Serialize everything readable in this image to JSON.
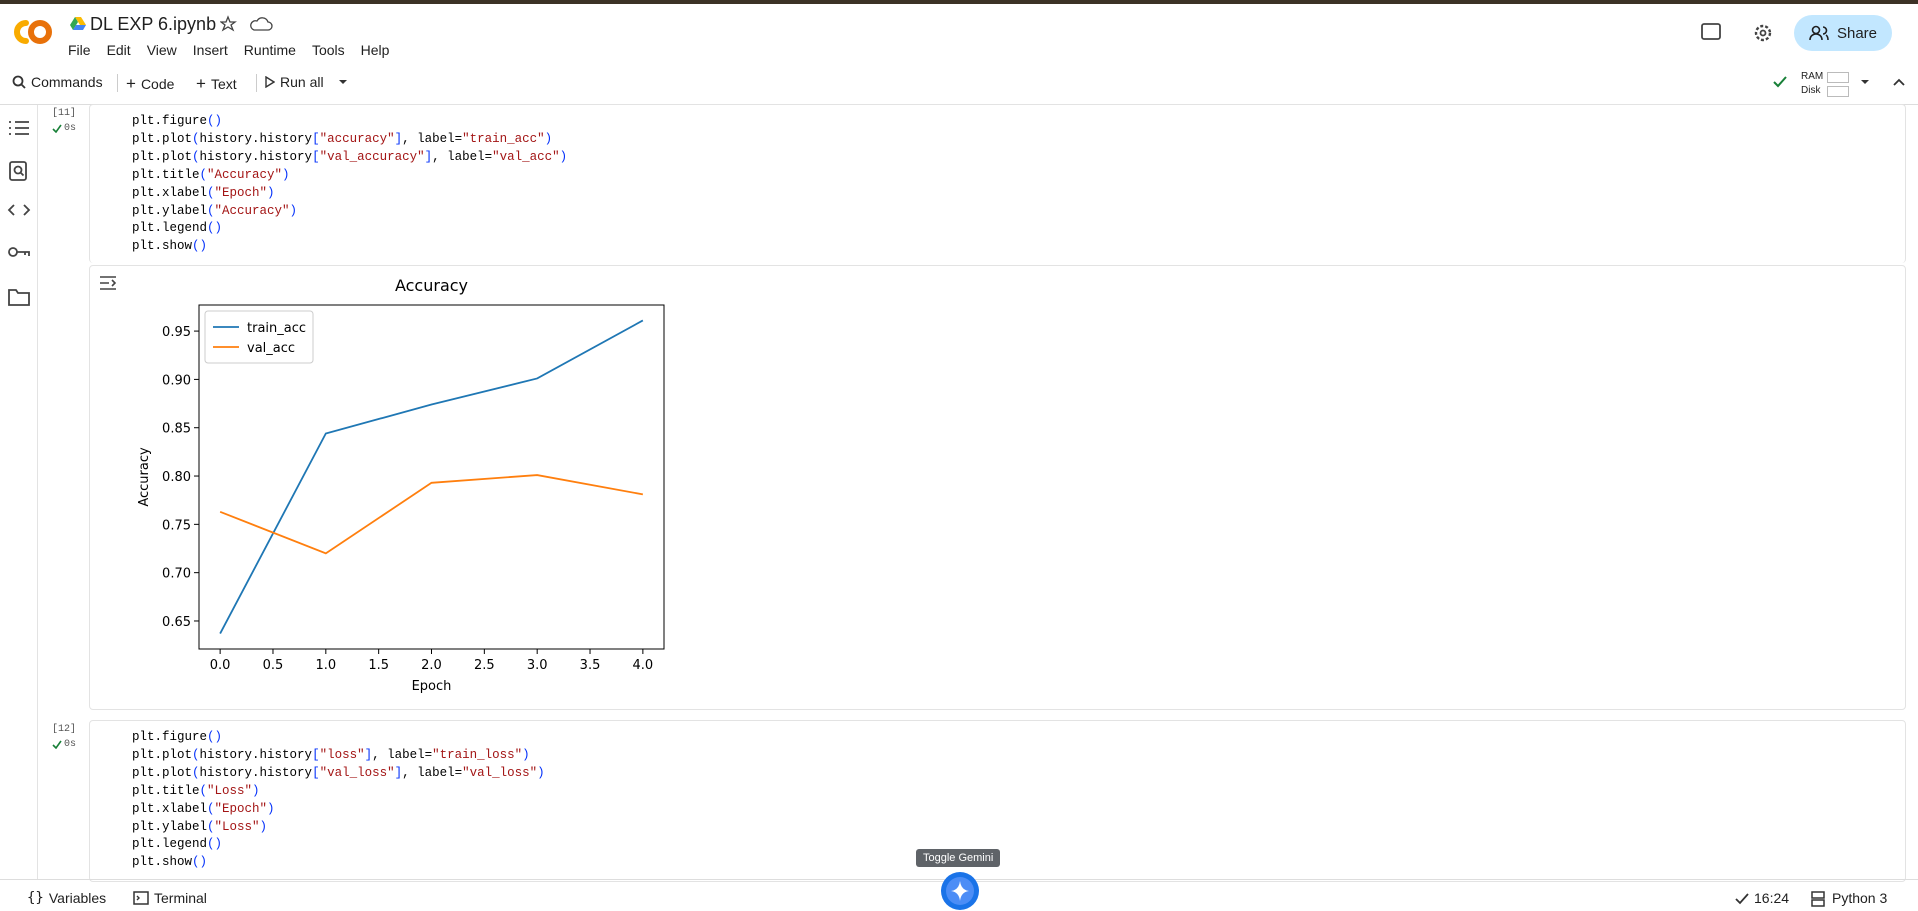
{
  "header": {
    "filename": "DL EXP 6.ipynb",
    "menu": [
      "File",
      "Edit",
      "View",
      "Insert",
      "Runtime",
      "Tools",
      "Help"
    ],
    "share": "Share"
  },
  "toolbar": {
    "commands": "Commands",
    "code": "Code",
    "text": "Text",
    "run_all": "Run all",
    "ram": "RAM",
    "disk": "Disk"
  },
  "cells": [
    {
      "count": "[11]",
      "time": "0s",
      "lines": [
        "plt.figure()",
        "plt.plot(history.history[\"accuracy\"], label=\"train_acc\")",
        "plt.plot(history.history[\"val_accuracy\"], label=\"val_acc\")",
        "plt.title(\"Accuracy\")",
        "plt.xlabel(\"Epoch\")",
        "plt.ylabel(\"Accuracy\")",
        "plt.legend()",
        "plt.show()"
      ]
    },
    {
      "count": "[12]",
      "time": "0s",
      "lines": [
        "plt.figure()",
        "plt.plot(history.history[\"loss\"], label=\"train_loss\")",
        "plt.plot(history.history[\"val_loss\"], label=\"val_loss\")",
        "plt.title(\"Loss\")",
        "plt.xlabel(\"Epoch\")",
        "plt.ylabel(\"Loss\")",
        "plt.legend()",
        "plt.show()"
      ]
    }
  ],
  "chart_data": {
    "type": "line",
    "title": "Accuracy",
    "x_label": "Epoch",
    "y_label": "Accuracy",
    "x": [
      0,
      1,
      2,
      3,
      4
    ],
    "series": [
      {
        "name": "train_acc",
        "color": "#1f77b4",
        "values": [
          0.637,
          0.844,
          0.874,
          0.901,
          0.961
        ]
      },
      {
        "name": "val_acc",
        "color": "#ff7f0e",
        "values": [
          0.763,
          0.72,
          0.793,
          0.801,
          0.781
        ]
      }
    ],
    "xlim": [
      -0.2,
      4.2
    ],
    "xticks": [
      {
        "value": 0,
        "label": "0.0"
      },
      0.5,
      {
        "value": 1,
        "label": "1.0"
      },
      1.5,
      {
        "value": 2,
        "label": "2.0"
      },
      2.5,
      {
        "value": 3,
        "label": "3.0"
      },
      3.5,
      {
        "value": 4,
        "label": "4.0"
      }
    ],
    "ylim": [
      0.621,
      0.977
    ],
    "yticks": [
      0.65,
      {
        "value": 0.7,
        "label": "0.70"
      },
      0.75,
      {
        "value": 0.8,
        "label": "0.80"
      },
      0.85,
      {
        "value": 0.9,
        "label": "0.90"
      },
      0.95
    ],
    "legend": "upper left",
    "grid": false
  },
  "footer": {
    "variables": "Variables",
    "terminal": "Terminal",
    "gemini_tooltip": "Toggle Gemini",
    "time": "16:24",
    "runtime": "Python 3"
  }
}
